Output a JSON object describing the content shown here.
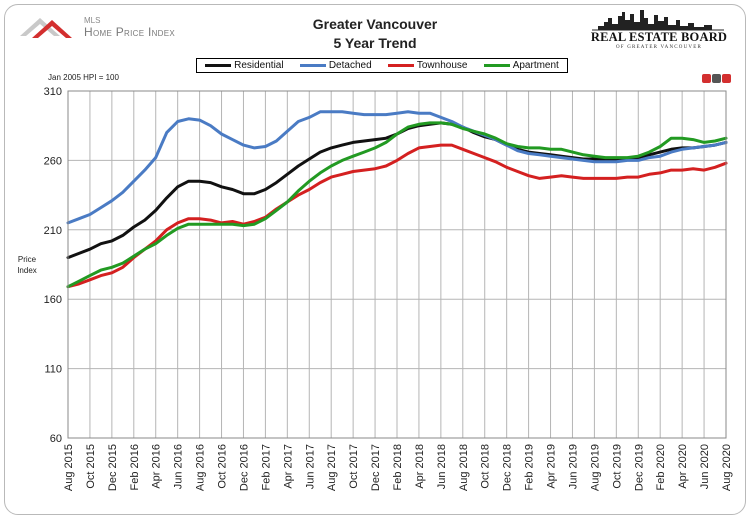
{
  "header": {
    "logo_small": "MLS",
    "logo_text": "Home Price Index",
    "title_line1": "Greater Vancouver",
    "title_line2": "5 Year Trend",
    "board_name": "REAL ESTATE BOARD",
    "board_sub": "OF GREATER VANCOUVER"
  },
  "chart_data": {
    "type": "line",
    "title": "Greater Vancouver 5 Year Trend",
    "note": "Jan 2005 HPI = 100",
    "ylabel": "Price Index",
    "xlabel": "",
    "ylim": [
      60,
      310
    ],
    "yticks": [
      60,
      110,
      160,
      210,
      260,
      310
    ],
    "grid": true,
    "legend_position": "top",
    "x": [
      "Aug 2015",
      "Sep 2015",
      "Oct 2015",
      "Nov 2015",
      "Dec 2015",
      "Jan 2016",
      "Feb 2016",
      "Mar 2016",
      "Apr 2016",
      "May 2016",
      "Jun 2016",
      "Jul 2016",
      "Aug 2016",
      "Sep 2016",
      "Oct 2016",
      "Nov 2016",
      "Dec 2016",
      "Jan 2017",
      "Feb 2017",
      "Mar 2017",
      "Apr 2017",
      "May 2017",
      "Jun 2017",
      "Jul 2017",
      "Aug 2017",
      "Sep 2017",
      "Oct 2017",
      "Nov 2017",
      "Dec 2017",
      "Jan 2018",
      "Feb 2018",
      "Mar 2018",
      "Apr 2018",
      "May 2018",
      "Jun 2018",
      "Jul 2018",
      "Aug 2018",
      "Sep 2018",
      "Oct 2018",
      "Nov 2018",
      "Dec 2018",
      "Jan 2019",
      "Feb 2019",
      "Mar 2019",
      "Apr 2019",
      "May 2019",
      "Jun 2019",
      "Jul 2019",
      "Aug 2019",
      "Sep 2019",
      "Oct 2019",
      "Nov 2019",
      "Dec 2019",
      "Jan 2020",
      "Feb 2020",
      "Mar 2020",
      "Apr 2020",
      "May 2020",
      "Jun 2020",
      "Jul 2020",
      "Aug 2020"
    ],
    "tick_labels": [
      "Aug 2015",
      "Oct 2015",
      "Dec 2015",
      "Feb 2016",
      "Apr 2016",
      "Jun 2016",
      "Aug 2016",
      "Oct 2016",
      "Dec 2016",
      "Feb 2017",
      "Apr 2017",
      "Jun 2017",
      "Aug 2017",
      "Oct 2017",
      "Dec 2017",
      "Feb 2018",
      "Apr 2018",
      "Jun 2018",
      "Aug 2018",
      "Oct 2018",
      "Dec 2018",
      "Feb 2019",
      "Apr 2019",
      "Jun 2019",
      "Aug 2019",
      "Oct 2019",
      "Dec 2019",
      "Feb 2020",
      "Apr 2020",
      "Jun 2020",
      "Aug 2020"
    ],
    "series": [
      {
        "name": "Residential",
        "color": "#111111",
        "values": [
          190,
          193,
          196,
          200,
          202,
          206,
          212,
          217,
          224,
          233,
          241,
          245,
          245,
          244,
          241,
          239,
          236,
          236,
          239,
          244,
          250,
          256,
          261,
          266,
          269,
          271,
          273,
          274,
          275,
          276,
          279,
          283,
          285,
          286,
          287,
          286,
          284,
          280,
          277,
          275,
          271,
          268,
          266,
          265,
          264,
          263,
          262,
          261,
          261,
          261,
          261,
          261,
          262,
          264,
          266,
          268,
          269,
          269,
          270,
          271,
          273
        ]
      },
      {
        "name": "Detached",
        "color": "#4a7bc4",
        "values": [
          215,
          218,
          221,
          226,
          231,
          237,
          245,
          253,
          262,
          280,
          288,
          290,
          289,
          285,
          279,
          275,
          271,
          269,
          270,
          274,
          281,
          288,
          291,
          295,
          295,
          295,
          294,
          293,
          293,
          293,
          294,
          295,
          294,
          294,
          291,
          288,
          284,
          281,
          278,
          275,
          271,
          267,
          265,
          264,
          263,
          262,
          261,
          260,
          259,
          259,
          259,
          260,
          260,
          262,
          263,
          266,
          268,
          269,
          270,
          271,
          273
        ]
      },
      {
        "name": "Townhouse",
        "color": "#d42020",
        "values": [
          169,
          171,
          174,
          177,
          179,
          183,
          190,
          196,
          202,
          210,
          215,
          218,
          218,
          217,
          215,
          216,
          214,
          216,
          219,
          225,
          230,
          235,
          239,
          244,
          248,
          250,
          252,
          253,
          254,
          256,
          260,
          265,
          269,
          270,
          271,
          271,
          268,
          265,
          262,
          259,
          255,
          252,
          249,
          247,
          248,
          249,
          248,
          247,
          247,
          247,
          247,
          248,
          248,
          250,
          251,
          253,
          253,
          254,
          253,
          255,
          258
        ]
      },
      {
        "name": "Apartment",
        "color": "#229a22",
        "values": [
          169,
          173,
          177,
          181,
          183,
          186,
          191,
          196,
          200,
          206,
          211,
          214,
          214,
          214,
          214,
          214,
          213,
          214,
          218,
          224,
          230,
          238,
          245,
          251,
          256,
          260,
          263,
          266,
          269,
          273,
          279,
          284,
          286,
          287,
          287,
          286,
          283,
          281,
          279,
          276,
          272,
          270,
          269,
          269,
          268,
          268,
          266,
          264,
          263,
          262,
          262,
          262,
          263,
          266,
          270,
          276,
          276,
          275,
          273,
          274,
          276
        ]
      }
    ]
  }
}
